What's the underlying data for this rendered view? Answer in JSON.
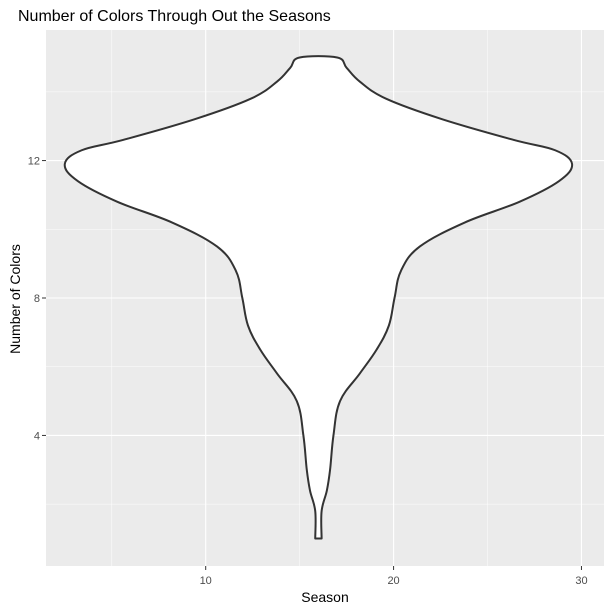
{
  "chart_data": {
    "type": "violin",
    "title": "Number of Colors Through Out the Seasons",
    "xlabel": "Season",
    "ylabel": "Number of Colors",
    "x_ticks": [
      10,
      20,
      30
    ],
    "y_ticks": [
      4,
      8,
      12
    ],
    "xlim": [
      1.5,
      31.2
    ],
    "ylim": [
      0.2,
      15.8
    ],
    "grid": true,
    "legend": "none",
    "panel_background": "#ebebeb",
    "outline_color": "#333333",
    "fill_color": "#ffffff",
    "violin": {
      "center_x": 16.0,
      "y_min": 1.0,
      "y_max": 15.0,
      "half_width_profile": [
        {
          "y": 1.0,
          "half_width": 0.17
        },
        {
          "y": 1.8,
          "half_width": 0.17
        },
        {
          "y": 2.4,
          "half_width": 0.45
        },
        {
          "y": 3.0,
          "half_width": 0.62
        },
        {
          "y": 4.0,
          "half_width": 0.8
        },
        {
          "y": 5.0,
          "half_width": 1.15
        },
        {
          "y": 5.8,
          "half_width": 2.2
        },
        {
          "y": 6.5,
          "half_width": 3.1
        },
        {
          "y": 7.2,
          "half_width": 3.75
        },
        {
          "y": 8.0,
          "half_width": 4.05
        },
        {
          "y": 8.8,
          "half_width": 4.4
        },
        {
          "y": 9.5,
          "half_width": 5.4
        },
        {
          "y": 10.2,
          "half_width": 7.8
        },
        {
          "y": 10.8,
          "half_width": 10.7
        },
        {
          "y": 11.4,
          "half_width": 12.8
        },
        {
          "y": 11.9,
          "half_width": 13.5
        },
        {
          "y": 12.3,
          "half_width": 12.6
        },
        {
          "y": 12.6,
          "half_width": 10.4
        },
        {
          "y": 13.2,
          "half_width": 6.6
        },
        {
          "y": 13.8,
          "half_width": 3.6
        },
        {
          "y": 14.3,
          "half_width": 2.2
        },
        {
          "y": 14.7,
          "half_width": 1.5
        },
        {
          "y": 15.0,
          "half_width": 1.0
        }
      ]
    }
  }
}
